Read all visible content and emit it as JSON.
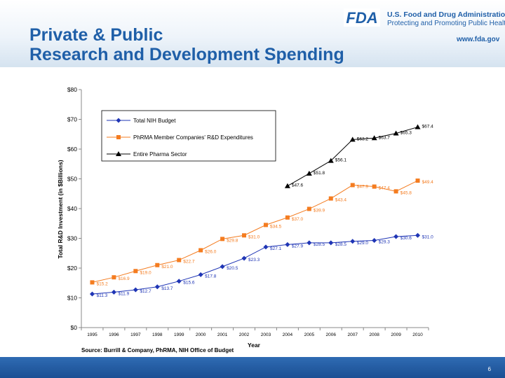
{
  "slide": {
    "title_line1": "Private & Public",
    "title_line2": "Research and Development Spending",
    "agency_name": "U.S. Food and Drug Administration",
    "agency_tagline": "Protecting and Promoting Public Health",
    "agency_url": "www.fda.gov",
    "logo_text": "FDA",
    "source": "Source:  Burrill & Company, PhRMA, NIH Office of Budget",
    "page_number": "6",
    "accent_color": "#1f5fa8"
  },
  "chart_data": {
    "type": "line",
    "xlabel": "Year",
    "ylabel": "Total R&D Investment (in $Billions)",
    "ylim": [
      0,
      80
    ],
    "y_ticks": [
      "$0",
      "$10",
      "$20",
      "$30",
      "$40",
      "$50",
      "$60",
      "$70",
      "$80"
    ],
    "categories": [
      "1995",
      "1996",
      "1997",
      "1998",
      "1999",
      "2000",
      "2001",
      "2002",
      "2003",
      "2004",
      "2005",
      "2006",
      "2007",
      "2008",
      "2009",
      "2010"
    ],
    "legend_position": "top-left",
    "grid": false,
    "series": [
      {
        "name": "Total NIH Budget",
        "color": "#1f35b5",
        "marker": "diamond",
        "values": [
          11.3,
          11.9,
          12.7,
          13.7,
          15.6,
          17.8,
          20.5,
          23.3,
          27.1,
          27.9,
          28.5,
          28.5,
          29.0,
          29.3,
          30.6,
          31.0
        ],
        "labels": [
          "$11.3",
          "$11.9",
          "$12.7",
          "$13.7",
          "$15.6",
          "$17.8",
          "$20.5",
          "$23.3",
          "$27.1",
          "$27.9",
          "$28.5",
          "$28.5",
          "$29.0",
          "$29.3",
          "$30.6",
          "$31.0"
        ]
      },
      {
        "name": "PhRMA Member Companies' R&D Expenditures",
        "color": "#f47c20",
        "marker": "square",
        "values": [
          15.2,
          16.9,
          19.0,
          21.0,
          22.7,
          26.0,
          29.8,
          31.0,
          34.5,
          37.0,
          39.9,
          43.4,
          47.9,
          47.4,
          45.8,
          49.4
        ],
        "labels": [
          "$15.2",
          "$16.9",
          "$19.0",
          "$21.0",
          "$22.7",
          "$26.0",
          "$29.8",
          "$31.0",
          "$34.5",
          "$37.0",
          "$39.9",
          "$43.4",
          "$47.9",
          "$47.4",
          "$45.8",
          "$49.4"
        ]
      },
      {
        "name": "Entire Pharma Sector",
        "color": "#000000",
        "marker": "triangle",
        "values": [
          null,
          null,
          null,
          null,
          null,
          null,
          null,
          null,
          null,
          47.6,
          51.8,
          56.1,
          63.2,
          63.7,
          65.3,
          67.4
        ],
        "labels": [
          null,
          null,
          null,
          null,
          null,
          null,
          null,
          null,
          null,
          "$47.6",
          "$51.8",
          "$56.1",
          "$63.2",
          "$63.7",
          "$65.3",
          "$67.4"
        ]
      }
    ]
  }
}
